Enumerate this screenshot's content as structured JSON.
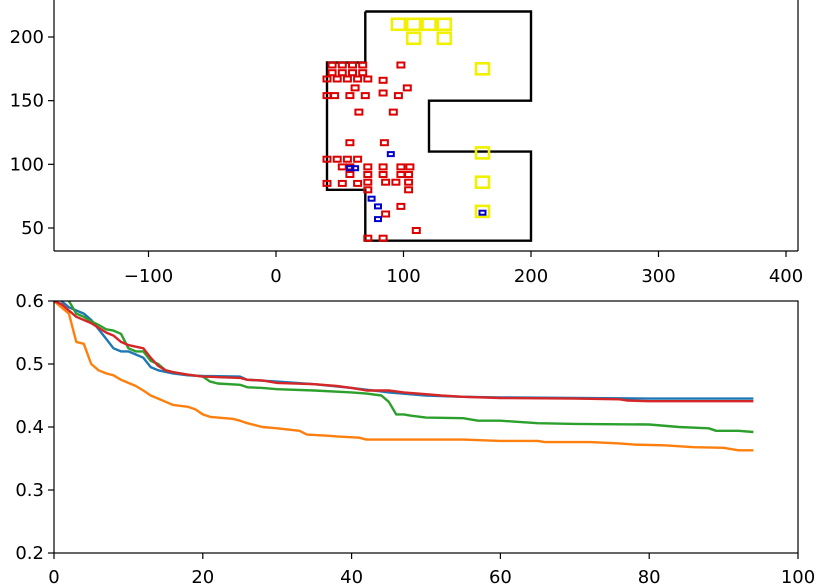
{
  "chart_data": [
    {
      "type": "scatter",
      "subtype": "floorplan-layout",
      "title": "",
      "xlabel": "",
      "ylabel": "",
      "xlim": [
        -170,
        410
      ],
      "ylim": [
        31,
        222
      ],
      "xticks": [
        -100,
        0,
        100,
        200,
        300,
        400
      ],
      "xtick_labels": [
        "−100",
        "0",
        "100",
        "200",
        "300",
        "400"
      ],
      "yticks": [
        50,
        100,
        150,
        200
      ],
      "ytick_labels": [
        "50",
        "100",
        "150",
        "200"
      ],
      "grid": false,
      "colors": {
        "outline": "#000000",
        "red": "#dd0000",
        "blue": "#0000cc",
        "yellow": "#f0f000"
      },
      "outline": [
        [
          70,
          220
        ],
        [
          200,
          220
        ],
        [
          200,
          150
        ],
        [
          120,
          150
        ],
        [
          120,
          110
        ],
        [
          200,
          110
        ],
        [
          200,
          40
        ],
        [
          70,
          40
        ],
        [
          70,
          80
        ],
        [
          40,
          80
        ],
        [
          40,
          180
        ],
        [
          70,
          180
        ],
        [
          70,
          220
        ]
      ],
      "red_boxes": [
        [
          44,
          178
        ],
        [
          52,
          178
        ],
        [
          60,
          178
        ],
        [
          68,
          178
        ],
        [
          44,
          172
        ],
        [
          52,
          172
        ],
        [
          60,
          172
        ],
        [
          68,
          172
        ],
        [
          40,
          167
        ],
        [
          48,
          167
        ],
        [
          56,
          167
        ],
        [
          64,
          167
        ],
        [
          72,
          167
        ],
        [
          40,
          154
        ],
        [
          46,
          154
        ],
        [
          58,
          154
        ],
        [
          70,
          154
        ],
        [
          62,
          160
        ],
        [
          84,
          166
        ],
        [
          84,
          156
        ],
        [
          96,
          154
        ],
        [
          103,
          160
        ],
        [
          98,
          178
        ],
        [
          65,
          141
        ],
        [
          92,
          141
        ],
        [
          58,
          117
        ],
        [
          85,
          117
        ],
        [
          40,
          104
        ],
        [
          48,
          104
        ],
        [
          56,
          104
        ],
        [
          64,
          104
        ],
        [
          52,
          98
        ],
        [
          58,
          98
        ],
        [
          72,
          98
        ],
        [
          84,
          98
        ],
        [
          98,
          98
        ],
        [
          105,
          98
        ],
        [
          58,
          92
        ],
        [
          72,
          92
        ],
        [
          84,
          92
        ],
        [
          98,
          92
        ],
        [
          104,
          92
        ],
        [
          40,
          85
        ],
        [
          52,
          85
        ],
        [
          64,
          85
        ],
        [
          72,
          86
        ],
        [
          86,
          86
        ],
        [
          94,
          86
        ],
        [
          104,
          86
        ],
        [
          72,
          80
        ],
        [
          104,
          80
        ],
        [
          98,
          67
        ],
        [
          86,
          61
        ],
        [
          110,
          48
        ],
        [
          72,
          42
        ],
        [
          84,
          42
        ]
      ],
      "blue_boxes": [
        [
          90,
          108
        ],
        [
          58,
          97
        ],
        [
          62,
          97
        ],
        [
          75,
          73
        ],
        [
          80,
          67
        ],
        [
          80,
          57
        ],
        [
          162,
          62
        ]
      ],
      "yellow_boxes": [
        [
          96,
          210
        ],
        [
          108,
          210
        ],
        [
          120,
          210
        ],
        [
          132,
          210
        ],
        [
          108,
          199
        ],
        [
          132,
          199
        ],
        [
          162,
          175
        ],
        [
          162,
          109
        ],
        [
          162,
          86
        ],
        [
          162,
          63
        ]
      ]
    },
    {
      "type": "line",
      "title": "",
      "xlabel": "",
      "ylabel": "",
      "xlim": [
        0,
        100
      ],
      "ylim": [
        0.2,
        0.6
      ],
      "xticks": [
        0,
        20,
        40,
        60,
        80,
        100
      ],
      "xtick_labels": [
        "0",
        "20",
        "40",
        "60",
        "80",
        "100"
      ],
      "yticks": [
        0.2,
        0.3,
        0.4,
        0.5,
        0.6
      ],
      "ytick_labels": [
        "0.2",
        "0.3",
        "0.4",
        "0.5",
        "0.6"
      ],
      "grid": false,
      "legend": "none",
      "series": [
        {
          "color": "#1f77b4",
          "points": [
            [
              0,
              0.62
            ],
            [
              1,
              0.6
            ],
            [
              2,
              0.59
            ],
            [
              3,
              0.585
            ],
            [
              4,
              0.58
            ],
            [
              5,
              0.57
            ],
            [
              6,
              0.555
            ],
            [
              7,
              0.54
            ],
            [
              8,
              0.525
            ],
            [
              9,
              0.52
            ],
            [
              10,
              0.52
            ],
            [
              11,
              0.515
            ],
            [
              12,
              0.51
            ],
            [
              13,
              0.495
            ],
            [
              14,
              0.49
            ],
            [
              16,
              0.485
            ],
            [
              18,
              0.482
            ],
            [
              20,
              0.481
            ],
            [
              25,
              0.48
            ],
            [
              26,
              0.475
            ],
            [
              30,
              0.472
            ],
            [
              35,
              0.468
            ],
            [
              40,
              0.462
            ],
            [
              45,
              0.455
            ],
            [
              50,
              0.45
            ],
            [
              55,
              0.448
            ],
            [
              60,
              0.447
            ],
            [
              70,
              0.446
            ],
            [
              80,
              0.445
            ],
            [
              94,
              0.445
            ]
          ]
        },
        {
          "color": "#ff7f0e",
          "points": [
            [
              0,
              0.6
            ],
            [
              2,
              0.58
            ],
            [
              3,
              0.535
            ],
            [
              4,
              0.532
            ],
            [
              5,
              0.5
            ],
            [
              6,
              0.49
            ],
            [
              7,
              0.485
            ],
            [
              8,
              0.482
            ],
            [
              9,
              0.475
            ],
            [
              10,
              0.47
            ],
            [
              11,
              0.465
            ],
            [
              12,
              0.458
            ],
            [
              13,
              0.45
            ],
            [
              14,
              0.445
            ],
            [
              15,
              0.44
            ],
            [
              16,
              0.435
            ],
            [
              18,
              0.432
            ],
            [
              19,
              0.428
            ],
            [
              20,
              0.42
            ],
            [
              21,
              0.416
            ],
            [
              24,
              0.413
            ],
            [
              25,
              0.41
            ],
            [
              26,
              0.406
            ],
            [
              28,
              0.4
            ],
            [
              30,
              0.398
            ],
            [
              33,
              0.394
            ],
            [
              34,
              0.388
            ],
            [
              37,
              0.386
            ],
            [
              38,
              0.385
            ],
            [
              41,
              0.383
            ],
            [
              42,
              0.38
            ],
            [
              55,
              0.38
            ],
            [
              60,
              0.378
            ],
            [
              65,
              0.378
            ],
            [
              66,
              0.376
            ],
            [
              72,
              0.376
            ],
            [
              76,
              0.374
            ],
            [
              78,
              0.372
            ],
            [
              82,
              0.371
            ],
            [
              86,
              0.368
            ],
            [
              90,
              0.367
            ],
            [
              92,
              0.363
            ],
            [
              94,
              0.363
            ]
          ]
        },
        {
          "color": "#2ca02c",
          "points": [
            [
              0,
              0.63
            ],
            [
              2,
              0.6
            ],
            [
              3,
              0.58
            ],
            [
              4,
              0.575
            ],
            [
              5,
              0.568
            ],
            [
              6,
              0.562
            ],
            [
              7,
              0.555
            ],
            [
              8,
              0.553
            ],
            [
              9,
              0.548
            ],
            [
              10,
              0.525
            ],
            [
              11,
              0.52
            ],
            [
              12,
              0.52
            ],
            [
              13,
              0.505
            ],
            [
              14,
              0.5
            ],
            [
              15,
              0.49
            ],
            [
              16,
              0.487
            ],
            [
              18,
              0.483
            ],
            [
              20,
              0.48
            ],
            [
              21,
              0.472
            ],
            [
              22,
              0.469
            ],
            [
              25,
              0.467
            ],
            [
              26,
              0.463
            ],
            [
              28,
              0.462
            ],
            [
              30,
              0.46
            ],
            [
              35,
              0.458
            ],
            [
              40,
              0.455
            ],
            [
              42,
              0.453
            ],
            [
              44,
              0.45
            ],
            [
              45,
              0.44
            ],
            [
              46,
              0.42
            ],
            [
              47,
              0.42
            ],
            [
              48,
              0.418
            ],
            [
              50,
              0.415
            ],
            [
              55,
              0.414
            ],
            [
              57,
              0.41
            ],
            [
              60,
              0.41
            ],
            [
              65,
              0.406
            ],
            [
              70,
              0.405
            ],
            [
              80,
              0.404
            ],
            [
              84,
              0.4
            ],
            [
              88,
              0.398
            ],
            [
              89,
              0.394
            ],
            [
              92,
              0.394
            ],
            [
              94,
              0.392
            ]
          ]
        },
        {
          "color": "#d62728",
          "points": [
            [
              0,
              0.6
            ],
            [
              1,
              0.595
            ],
            [
              2,
              0.585
            ],
            [
              3,
              0.575
            ],
            [
              5,
              0.565
            ],
            [
              7,
              0.55
            ],
            [
              8,
              0.545
            ],
            [
              9,
              0.535
            ],
            [
              10,
              0.53
            ],
            [
              12,
              0.525
            ],
            [
              13,
              0.51
            ],
            [
              14,
              0.497
            ],
            [
              15,
              0.49
            ],
            [
              16,
              0.487
            ],
            [
              18,
              0.483
            ],
            [
              20,
              0.48
            ],
            [
              25,
              0.478
            ],
            [
              26,
              0.475
            ],
            [
              28,
              0.474
            ],
            [
              30,
              0.47
            ],
            [
              35,
              0.468
            ],
            [
              38,
              0.465
            ],
            [
              40,
              0.462
            ],
            [
              42,
              0.458
            ],
            [
              45,
              0.458
            ],
            [
              47,
              0.455
            ],
            [
              50,
              0.452
            ],
            [
              52,
              0.45
            ],
            [
              55,
              0.448
            ],
            [
              60,
              0.446
            ],
            [
              70,
              0.445
            ],
            [
              76,
              0.444
            ],
            [
              77,
              0.442
            ],
            [
              80,
              0.441
            ],
            [
              94,
              0.441
            ]
          ]
        }
      ]
    }
  ]
}
